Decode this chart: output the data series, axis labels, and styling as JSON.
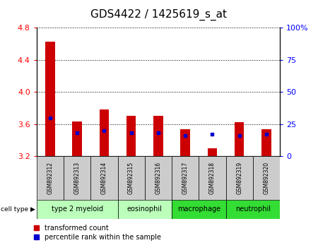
{
  "title": "GDS4422 / 1425619_s_at",
  "samples": [
    "GSM892312",
    "GSM892313",
    "GSM892314",
    "GSM892315",
    "GSM892316",
    "GSM892317",
    "GSM892318",
    "GSM892319",
    "GSM892320"
  ],
  "red_values": [
    4.62,
    3.63,
    3.78,
    3.7,
    3.7,
    3.54,
    3.3,
    3.62,
    3.54
  ],
  "blue_values": [
    30,
    18,
    20,
    18,
    18,
    16,
    17,
    16,
    17
  ],
  "y_min": 3.2,
  "y_max": 4.8,
  "y_ticks": [
    3.2,
    3.6,
    4.0,
    4.4,
    4.8
  ],
  "right_y_ticks": [
    0,
    25,
    50,
    75,
    100
  ],
  "right_y_labels": [
    "0",
    "25",
    "50",
    "75",
    "100%"
  ],
  "cell_groups": [
    {
      "label": "type 2 myeloid",
      "start": 0,
      "end": 3,
      "color": "#bbffbb"
    },
    {
      "label": "eosinophil",
      "start": 3,
      "end": 5,
      "color": "#bbffbb"
    },
    {
      "label": "macrophage",
      "start": 5,
      "end": 7,
      "color": "#33dd33"
    },
    {
      "label": "neutrophil",
      "start": 7,
      "end": 9,
      "color": "#33dd33"
    }
  ],
  "bar_width": 0.35,
  "bar_color": "#cc0000",
  "blue_color": "#0000cc",
  "background_color": "#ffffff",
  "title_fontsize": 11,
  "tick_fontsize": 8,
  "sample_fontsize": 5.5,
  "cell_fontsize": 7,
  "legend_fontsize": 7
}
